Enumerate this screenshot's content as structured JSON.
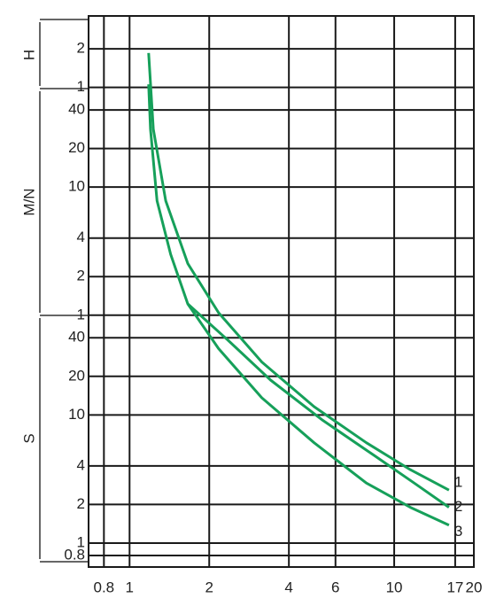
{
  "chart_data": {
    "type": "line",
    "x_scale": "log",
    "y_scale": "log",
    "grid": true,
    "xlim": [
      0.7,
      20
    ],
    "xticks": [
      {
        "value": 0.8,
        "label": "0.8"
      },
      1,
      2,
      4,
      6,
      10,
      17,
      20
    ],
    "ylim": [
      0.65,
      13000
    ],
    "yticks": [
      {
        "value": 7200,
        "label": "2"
      },
      {
        "value": 3600,
        "label": "1"
      },
      {
        "value": 2400,
        "label": "40"
      },
      {
        "value": 1200,
        "label": "20"
      },
      {
        "value": 600,
        "label": "10"
      },
      {
        "value": 240,
        "label": "4"
      },
      {
        "value": 120,
        "label": "2"
      },
      {
        "value": 60,
        "label": "1"
      },
      40,
      20,
      10,
      4,
      2,
      1,
      {
        "value": 0.8,
        "label": "0.8"
      }
    ],
    "time_units": [
      "H",
      "M/N",
      "S"
    ],
    "series": [
      {
        "name": "1",
        "color": "#16a05a",
        "x": [
          1.18,
          1.23,
          1.37,
          1.66,
          2.17,
          3.16,
          4.98,
          7.85,
          11.5,
          16.1
        ],
        "values": [
          6680,
          1702,
          469,
          152,
          62.7,
          25.9,
          11.6,
          6.07,
          3.74,
          2.59
        ]
      },
      {
        "name": "2",
        "color": "#16a05a",
        "x": [
          1.66,
          2.34,
          3.41,
          5.37,
          8.47,
          11.9,
          16.1
        ],
        "values": [
          73.6,
          38.7,
          18.7,
          9.08,
          4.77,
          2.94,
          1.9
        ]
      },
      {
        "name": "3",
        "color": "#16a05a",
        "x": [
          1.18,
          1.2,
          1.27,
          1.43,
          1.66,
          2.17,
          3.16,
          4.98,
          7.85,
          11.5,
          16.1
        ],
        "values": [
          3800,
          1702,
          469,
          179,
          73.6,
          32.9,
          13.6,
          6.07,
          2.94,
          1.9,
          1.38
        ]
      }
    ]
  }
}
